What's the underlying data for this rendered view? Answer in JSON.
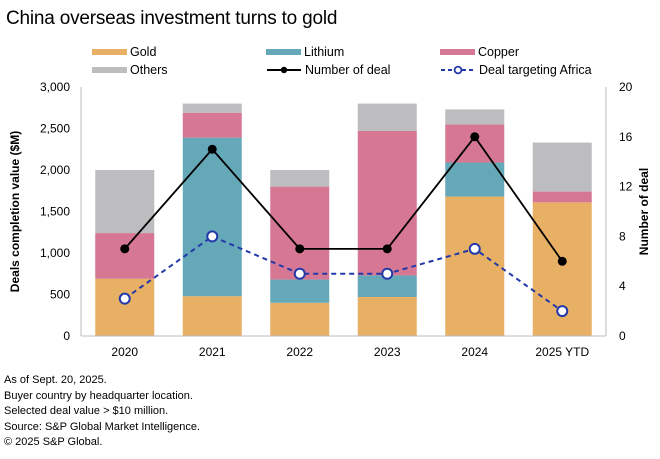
{
  "title": "China overseas investment turns to gold",
  "legend": [
    {
      "key": "gold",
      "label": "Gold",
      "kind": "swatch",
      "color": "#E8B065"
    },
    {
      "key": "lithium",
      "label": "Lithium",
      "kind": "swatch",
      "color": "#65A8B8"
    },
    {
      "key": "copper",
      "label": "Copper",
      "kind": "swatch",
      "color": "#D67894"
    },
    {
      "key": "others",
      "label": "Others",
      "kind": "swatch",
      "color": "#BDBDBF"
    },
    {
      "key": "deals",
      "label": "Number of deal",
      "kind": "solid-line-dot",
      "color": "#000000"
    },
    {
      "key": "africa",
      "label": "Deal targeting Africa",
      "kind": "dashed-line-circle",
      "color": "#2339A8"
    }
  ],
  "footnotes": [
    "As of Sept. 20, 2025.",
    "Buyer country by headquarter location.",
    "Selected deal value > $10 million.",
    "Source: S&P Global Market Intelligence.",
    "© 2025 S&P Global."
  ],
  "chart_data": {
    "type": "bar",
    "stacked": true,
    "title": "China overseas investment turns to gold",
    "categories": [
      "2020",
      "2021",
      "2022",
      "2023",
      "2024",
      "2025 YTD"
    ],
    "ylabel": "Deals completion value ($M)",
    "ylim": [
      0,
      3000
    ],
    "yticks": [
      0,
      500,
      1000,
      1500,
      2000,
      2500,
      3000
    ],
    "ytick_labels": [
      "0",
      "500",
      "1,000",
      "1,500",
      "2,000",
      "2,500",
      "3,000"
    ],
    "y2label": "Number of deal",
    "y2lim": [
      0,
      20
    ],
    "y2ticks": [
      0,
      4,
      8,
      12,
      16,
      20
    ],
    "y2tick_labels": [
      "0",
      "4",
      "8",
      "12",
      "16",
      "20"
    ],
    "grid": false,
    "legend_position": "top",
    "series": [
      {
        "name": "Gold",
        "type": "bar",
        "axis": "left",
        "color": "#E8B065",
        "values": [
          690,
          480,
          400,
          470,
          1680,
          1610
        ]
      },
      {
        "name": "Lithium",
        "type": "bar",
        "axis": "left",
        "color": "#65A8B8",
        "values": [
          0,
          1910,
          280,
          260,
          410,
          0
        ]
      },
      {
        "name": "Copper",
        "type": "bar",
        "axis": "left",
        "color": "#D67894",
        "values": [
          550,
          300,
          1120,
          1740,
          460,
          130
        ]
      },
      {
        "name": "Others",
        "type": "bar",
        "axis": "left",
        "color": "#BDBDBF",
        "values": [
          760,
          110,
          200,
          330,
          180,
          590
        ]
      },
      {
        "name": "Number of deal",
        "type": "line",
        "axis": "right",
        "style": "solid",
        "marker": "filled-dot",
        "color": "#000000",
        "values": [
          7,
          15,
          7,
          7,
          16,
          6
        ]
      },
      {
        "name": "Deal targeting Africa",
        "type": "line",
        "axis": "right",
        "style": "dashed",
        "marker": "open-circle",
        "color": "#2339A8",
        "values": [
          3,
          8,
          5,
          5,
          7,
          2
        ]
      }
    ]
  }
}
